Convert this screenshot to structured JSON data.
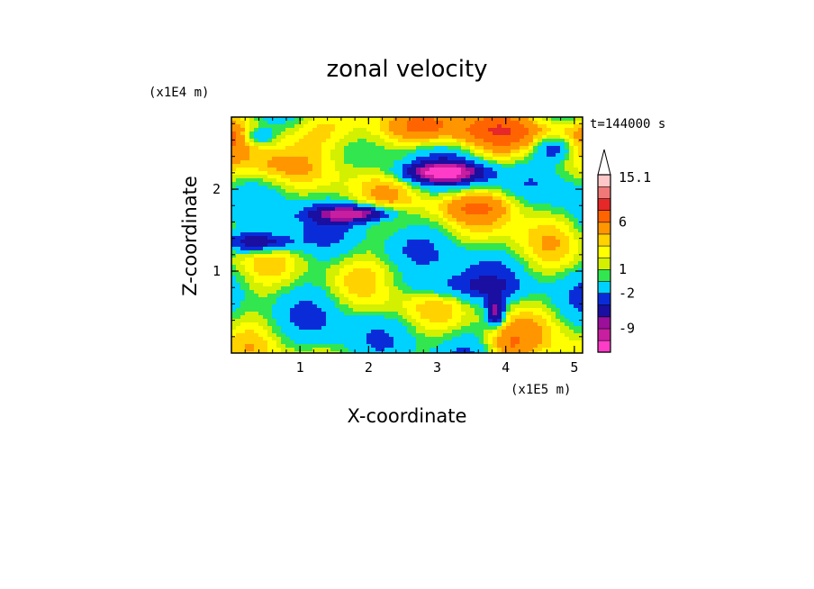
{
  "chart_data": {
    "type": "heatmap",
    "title": "zonal velocity",
    "xlabel": "X-coordinate",
    "ylabel": "Z-coordinate",
    "x_unit_label": "(x1E5 m)",
    "y_unit_label": "(x1E4 m)",
    "time_label": "t=144000 s",
    "x_ticks": [
      "1",
      "2",
      "3",
      "4",
      "5"
    ],
    "y_ticks": [
      "1",
      "2"
    ],
    "xlim": [
      0,
      5.12
    ],
    "ylim": [
      0,
      2.88
    ],
    "x_tick_values": [
      1,
      2,
      3,
      4,
      5
    ],
    "y_tick_values": [
      1,
      2
    ],
    "colorbar": {
      "labels": [
        {
          "text": "15.1",
          "level": 15.1
        },
        {
          "text": "6",
          "level": 6
        },
        {
          "text": "1",
          "level": 1
        },
        {
          "text": "-2",
          "level": -2
        },
        {
          "text": "-9",
          "level": -9
        }
      ],
      "colors": [
        "#ff3cc8",
        "#c81ea0",
        "#9b0f9b",
        "#1a0fa0",
        "#0a2cd8",
        "#00d2ff",
        "#32e650",
        "#d2f000",
        "#ffff00",
        "#ffd200",
        "#ff9600",
        "#ff6400",
        "#e62828",
        "#f07878",
        "#ffc8c8"
      ]
    },
    "field_features": [
      {
        "kind": "negative jet",
        "x": 1.8,
        "z": 1.7,
        "value": -9
      },
      {
        "kind": "negative jet",
        "x": 3.1,
        "z": 2.2,
        "value": -9
      },
      {
        "kind": "negative band",
        "x": 0.3,
        "z": 1.35,
        "value": -7
      },
      {
        "kind": "negative cell",
        "x": 3.85,
        "z": 0.5,
        "value": -9
      },
      {
        "kind": "positive band",
        "x": 3.6,
        "z": 1.8,
        "value": 6
      },
      {
        "kind": "positive band",
        "x": 4.0,
        "z": 0.1,
        "value": 6
      }
    ]
  }
}
